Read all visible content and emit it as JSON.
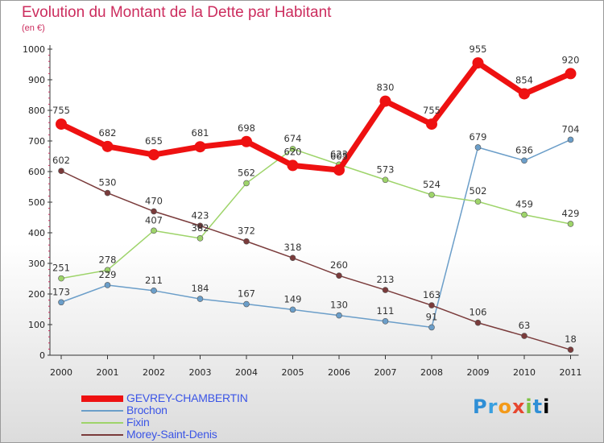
{
  "chart_data": {
    "type": "line",
    "title": "Evolution du Montant de la Dette par Habitant",
    "subtitle": "(en €)",
    "xlabel": "",
    "ylabel": "",
    "x": [
      "2000",
      "2001",
      "2002",
      "2003",
      "2004",
      "2005",
      "2006",
      "2007",
      "2008",
      "2009",
      "2010",
      "2011"
    ],
    "yticks": [
      0,
      100,
      200,
      300,
      400,
      500,
      600,
      700,
      800,
      900,
      1000
    ],
    "ylim": [
      0,
      1000
    ],
    "grid": false,
    "legend_position": "bottom-left",
    "series": [
      {
        "name": "GEVREY-CHAMBERTIN",
        "color": "#ee1111",
        "width": 7,
        "marker": 7,
        "values": [
          755,
          682,
          655,
          681,
          698,
          620,
          605,
          830,
          755,
          955,
          854,
          920
        ],
        "labels": [
          "755",
          "682",
          "655",
          "681",
          "698",
          "620",
          "605",
          "830",
          "755",
          "955",
          "854",
          "920"
        ]
      },
      {
        "name": "Brochon",
        "color": "#6b9ec9",
        "width": 1.5,
        "marker": 3.5,
        "values": [
          173,
          229,
          211,
          184,
          167,
          149,
          130,
          111,
          91,
          679,
          636,
          704
        ],
        "labels": [
          "173",
          "229",
          "211",
          "184",
          "167",
          "149",
          "130",
          "111",
          "91",
          "679",
          "636",
          "704"
        ]
      },
      {
        "name": "Fixin",
        "color": "#9ed46a",
        "width": 1.5,
        "marker": 3.5,
        "values": [
          251,
          278,
          407,
          382,
          562,
          674,
          623,
          573,
          524,
          502,
          459,
          429
        ],
        "labels": [
          "251",
          "278",
          "407",
          "382",
          "562",
          "674",
          "623",
          "573",
          "524",
          "502",
          "459",
          "429"
        ]
      },
      {
        "name": "Morey-Saint-Denis",
        "color": "#7a3b3b",
        "width": 1.5,
        "marker": 3.5,
        "values": [
          602,
          530,
          470,
          423,
          372,
          318,
          260,
          213,
          163,
          106,
          63,
          18
        ],
        "labels": [
          "602",
          "530",
          "470",
          "423",
          "372",
          "318",
          "260",
          "213",
          "163",
          "106",
          "63",
          "18"
        ]
      }
    ]
  },
  "logo": {
    "letters": [
      "P",
      "r",
      "o",
      "x",
      "i",
      "t",
      "i"
    ]
  }
}
